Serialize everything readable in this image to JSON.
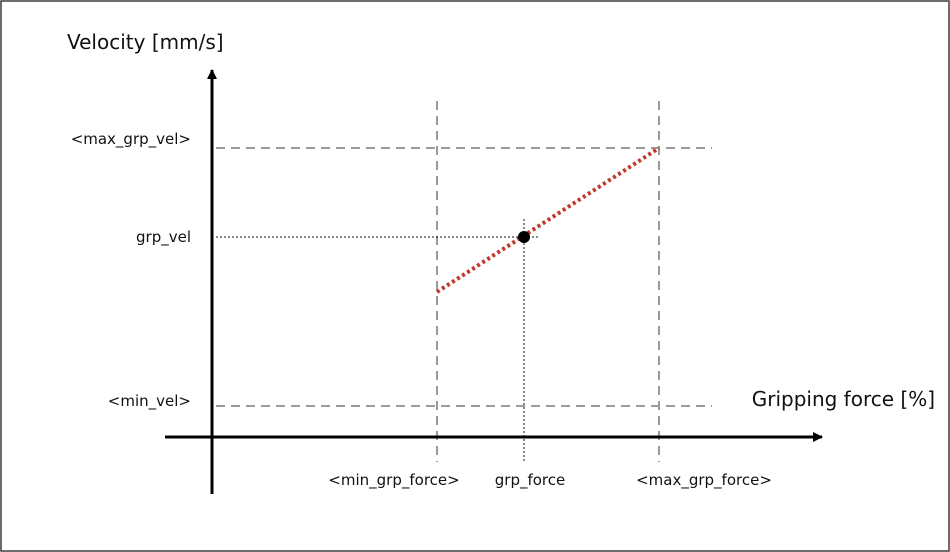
{
  "diagram": {
    "y_axis_title": "Velocity [mm/s]",
    "x_axis_title": "Gripping force [%]",
    "y_labels": {
      "max": "<max_grp_vel>",
      "value": "grp_vel",
      "min": "<min_vel>"
    },
    "x_labels": {
      "min": "<min_grp_force>",
      "value": "grp_force",
      "max": "<max_grp_force>"
    },
    "colors": {
      "axis": "#000000",
      "guide": "#9a9a9a",
      "curve": "#c0392b",
      "border": "#3c3c3c"
    }
  }
}
